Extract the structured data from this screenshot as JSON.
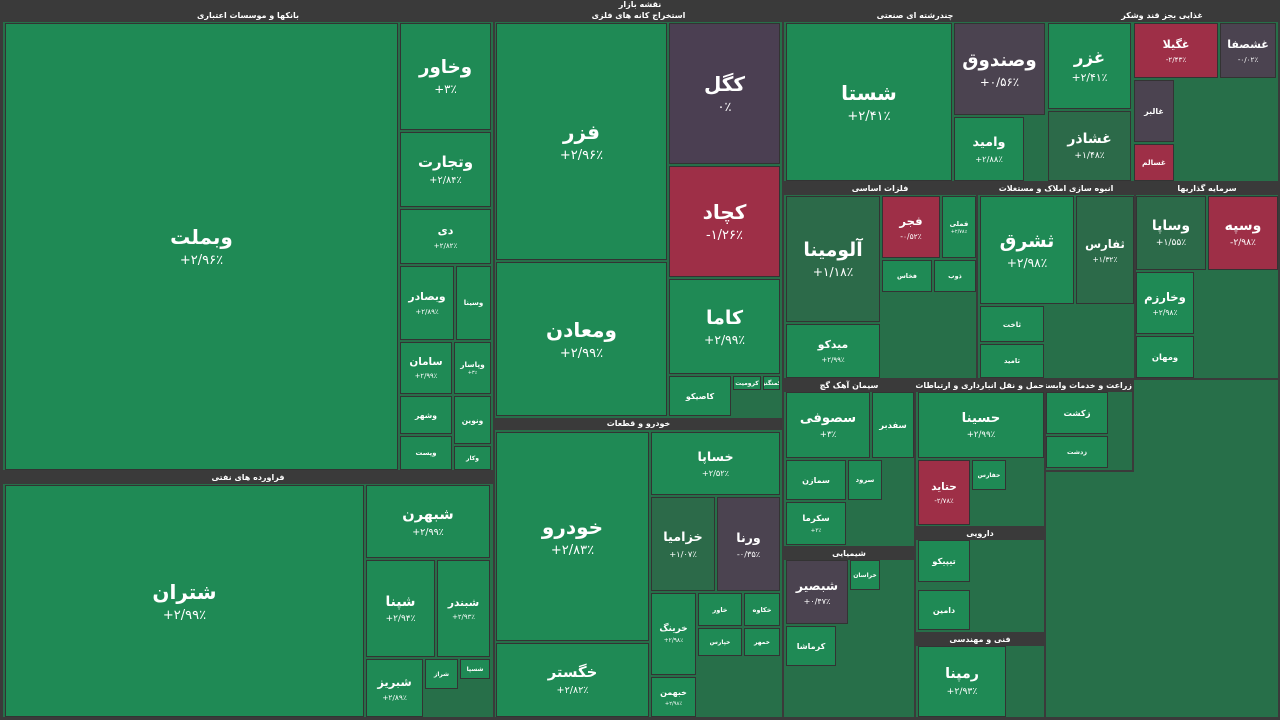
{
  "header": {
    "title": "نقشه بازار"
  },
  "sectors": [
    {
      "title": "بانکها و موسسات اعتباری",
      "tiles": [
        {
          "name": "وبملت",
          "change": "+۲/۹۶٪",
          "color": "#1f8a55"
        },
        {
          "name": "وخاور",
          "change": "+۳٪",
          "color": "#1f8a55"
        },
        {
          "name": "وتجارت",
          "change": "+۲/۸۴٪",
          "color": "#1f8a55"
        },
        {
          "name": "دی",
          "change": "+۲/۸۲٪",
          "color": "#1f8a55"
        },
        {
          "name": "وبصادر",
          "change": "+۲/۸۹٪",
          "color": "#1f8a55"
        },
        {
          "name": "وسینا",
          "color": "#1f8a55"
        },
        {
          "name": "سامان",
          "change": "+۲/۹۹٪",
          "color": "#1f8a55"
        },
        {
          "name": "وپاسار",
          "change": "+۳٪",
          "color": "#1f8a55"
        },
        {
          "name": "وشهر",
          "color": "#1f8a55"
        },
        {
          "name": "ونوین",
          "color": "#1f8a55"
        },
        {
          "name": "وپست",
          "color": "#1f8a55"
        },
        {
          "name": "وکار",
          "color": "#1f8a55"
        }
      ]
    },
    {
      "title": "فراورده های نفتی",
      "tiles": [
        {
          "name": "شتران",
          "change": "+۲/۹۹٪",
          "color": "#1f8a55"
        },
        {
          "name": "شبهرن",
          "change": "+۲/۹۹٪",
          "color": "#1f8a55"
        },
        {
          "name": "شپنا",
          "change": "+۲/۹۴٪",
          "color": "#1f8a55"
        },
        {
          "name": "شبندر",
          "change": "+۲/۹۳٪",
          "color": "#1f8a55"
        },
        {
          "name": "شبریز",
          "change": "+۲/۸۹٪",
          "color": "#1f8a55"
        },
        {
          "name": "شراز",
          "color": "#1f8a55"
        },
        {
          "name": "شسپا",
          "color": "#1f8a55"
        }
      ]
    },
    {
      "title": "استخراج کانه های فلزی",
      "tiles": [
        {
          "name": "فزر",
          "change": "+۲/۹۶٪",
          "color": "#1f8a55"
        },
        {
          "name": "کگل",
          "change": "۰٪",
          "color": "#4b3f52"
        },
        {
          "name": "ومعادن",
          "change": "+۲/۹۹٪",
          "color": "#1f8a55"
        },
        {
          "name": "کچاد",
          "change": "-۱/۲۶٪",
          "color": "#9e2f47"
        },
        {
          "name": "کاما",
          "change": "+۲/۹۹٪",
          "color": "#1f8a55"
        },
        {
          "name": "کاصیکو",
          "color": "#1f8a55"
        },
        {
          "name": "کرومیت",
          "color": "#1f8a55"
        },
        {
          "name": "کمنگنز",
          "color": "#1f8a55"
        }
      ]
    },
    {
      "title": "خودرو و قطعات",
      "tiles": [
        {
          "name": "خودرو",
          "change": "+۲/۸۳٪",
          "color": "#1f8a55"
        },
        {
          "name": "خساپا",
          "change": "+۲/۵۲٪",
          "color": "#1f8a55"
        },
        {
          "name": "خزامیا",
          "change": "+۱/۰۷٪",
          "color": "#2c6a49"
        },
        {
          "name": "ورنا",
          "change": "-۰/۳۵٪",
          "color": "#4b4350"
        },
        {
          "name": "خگستر",
          "change": "+۲/۸۲٪",
          "color": "#1f8a55"
        },
        {
          "name": "خرینگ",
          "change": "+۲/۹۸٪",
          "color": "#1f8a55"
        },
        {
          "name": "خاور",
          "color": "#1f8a55"
        },
        {
          "name": "خکاوه",
          "color": "#1f8a55"
        },
        {
          "name": "خپارس",
          "color": "#1f8a55"
        },
        {
          "name": "خمهر",
          "color": "#1f8a55"
        },
        {
          "name": "خبهمن",
          "change": "+۲/۹۸٪",
          "color": "#1f8a55"
        }
      ]
    },
    {
      "title": "چندرشته ای صنعتی",
      "tiles": [
        {
          "name": "شستا",
          "change": "+۲/۴۱٪",
          "color": "#1f8a55"
        },
        {
          "name": "وصندوق",
          "change": "+۰/۵۶٪",
          "color": "#4b4350"
        },
        {
          "name": "وامید",
          "change": "+۲/۸۸٪",
          "color": "#1f8a55"
        }
      ]
    },
    {
      "title": "غذایی بجز قند وشکر",
      "tiles": [
        {
          "name": "غزر",
          "change": "+۲/۴۱٪",
          "color": "#1f8a55"
        },
        {
          "name": "غشاذر",
          "change": "+۱/۴۸٪",
          "color": "#2c6a49"
        },
        {
          "name": "غگیلا",
          "change": "-۲/۴۳٪",
          "color": "#9e2f47"
        },
        {
          "name": "غشصفا",
          "change": "-۰/۰۲٪",
          "color": "#4b4350"
        },
        {
          "name": "غالبر",
          "color": "#4b4350"
        },
        {
          "name": "غسالم",
          "color": "#9e2f47"
        }
      ]
    },
    {
      "title": "فلزات اساسی",
      "tiles": [
        {
          "name": "آلومینا",
          "change": "+۱/۱۸٪",
          "color": "#2c6a49"
        },
        {
          "name": "فجر",
          "change": "-۰/۵۲٪",
          "color": "#9e2f47"
        },
        {
          "name": "فملی",
          "change": "+۲/۷۸٪",
          "color": "#1f8a55"
        },
        {
          "name": "میدکو",
          "change": "+۲/۹۹٪",
          "color": "#1f8a55"
        },
        {
          "name": "فخاس",
          "color": "#1f8a55"
        },
        {
          "name": "ذوب",
          "color": "#1f8a55"
        }
      ]
    },
    {
      "title": "انبوه سازی املاک و مستغلات",
      "tiles": [
        {
          "name": "ثشرق",
          "change": "+۲/۹۸٪",
          "color": "#1f8a55"
        },
        {
          "name": "ثفارس",
          "change": "+۱/۳۲٪",
          "color": "#2c6a49"
        },
        {
          "name": "ثاخت",
          "color": "#1f8a55"
        },
        {
          "name": "ثامید",
          "color": "#1f8a55"
        }
      ]
    },
    {
      "title": "سرمایه گذاریها",
      "tiles": [
        {
          "name": "وسپه",
          "change": "-۲/۹۸٪",
          "color": "#9e2f47"
        },
        {
          "name": "وساپا",
          "change": "+۱/۵۵٪",
          "color": "#2c6a49"
        },
        {
          "name": "وخارزم",
          "change": "+۲/۹۸٪",
          "color": "#1f8a55"
        },
        {
          "name": "ومهان",
          "color": "#1f8a55"
        }
      ]
    },
    {
      "title": "سیمان آهک گچ",
      "tiles": [
        {
          "name": "سصوفی",
          "change": "+۳٪",
          "color": "#1f8a55"
        },
        {
          "name": "سفدبر",
          "color": "#1f8a55"
        },
        {
          "name": "سمازن",
          "color": "#1f8a55"
        },
        {
          "name": "سرود",
          "color": "#1f8a55"
        },
        {
          "name": "سکرما",
          "change": "+۳٪",
          "color": "#1f8a55"
        }
      ]
    },
    {
      "title": "حمل و نقل انبارداری و ارتباطات",
      "tiles": [
        {
          "name": "حسینا",
          "change": "+۲/۹۹٪",
          "color": "#1f8a55"
        },
        {
          "name": "حتاید",
          "change": "-۲/۷۸٪",
          "color": "#9e2f47"
        },
        {
          "name": "حفارس",
          "color": "#1f8a55"
        }
      ]
    },
    {
      "title": "زراعت و خدمات وابسته",
      "tiles": [
        {
          "name": "زکشت",
          "color": "#1f8a55"
        },
        {
          "name": "زدشت",
          "color": "#1f8a55"
        }
      ]
    },
    {
      "title": "شیمیایی",
      "tiles": [
        {
          "name": "شبصیر",
          "change": "+۰/۴۷٪",
          "color": "#4b4350"
        },
        {
          "name": "کرماشا",
          "color": "#1f8a55"
        },
        {
          "name": "خراسان",
          "color": "#1f8a55"
        }
      ]
    },
    {
      "title": "دارویی",
      "tiles": [
        {
          "name": "تیپیکو",
          "color": "#1f8a55"
        },
        {
          "name": "دامین",
          "color": "#1f8a55"
        }
      ]
    },
    {
      "title": "فنی و مهندسی",
      "tiles": [
        {
          "name": "رمپنا",
          "change": "+۲/۹۳٪",
          "color": "#1f8a55"
        }
      ]
    }
  ]
}
